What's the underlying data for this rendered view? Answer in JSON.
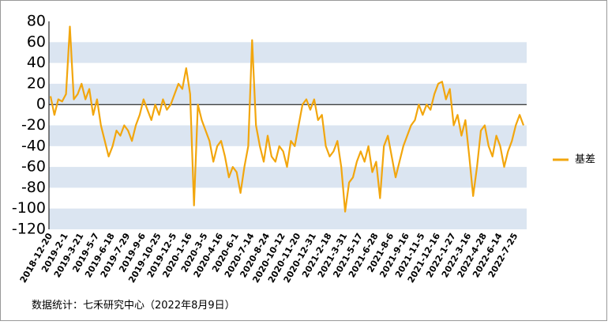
{
  "chart_data": {
    "type": "line",
    "categories": [
      "2018-12-20",
      null,
      null,
      null,
      "2019-2-1",
      null,
      null,
      null,
      "2019-3-21",
      null,
      null,
      null,
      "2019-5-7",
      null,
      null,
      null,
      "2019-6-18",
      null,
      null,
      null,
      "2019-7-29",
      null,
      null,
      null,
      "2019-9-6",
      null,
      null,
      null,
      "2019-10-25",
      null,
      null,
      null,
      "2019-12-5",
      null,
      null,
      null,
      "2020-1-16",
      null,
      null,
      null,
      "2020-3-5",
      null,
      null,
      null,
      "2020-4-16",
      null,
      null,
      null,
      "2020-6-1",
      null,
      null,
      null,
      "2020-7-14",
      null,
      null,
      null,
      "2020-8-24",
      null,
      null,
      null,
      "2020-10-12",
      null,
      null,
      null,
      "2020-11-20",
      null,
      null,
      null,
      "2020-12-31",
      null,
      null,
      null,
      "2021-2-18",
      null,
      null,
      null,
      "2021-3-31",
      null,
      null,
      null,
      "2021-5-17",
      null,
      null,
      null,
      "2021-6-28",
      null,
      null,
      null,
      "2021-8-6",
      null,
      null,
      null,
      "2021-9-16",
      null,
      null,
      null,
      "2021-11-5",
      null,
      null,
      null,
      "2021-12-16",
      null,
      null,
      null,
      "2022-1-27",
      null,
      null,
      null,
      "2022-3-16",
      null,
      null,
      null,
      "2022-4-28",
      null,
      null,
      null,
      "2022-6-14",
      null,
      null,
      null,
      "2022-7-25",
      null,
      null
    ],
    "series": [
      {
        "name": "基差",
        "color": "#f2a60d",
        "values": [
          8,
          -10,
          5,
          3,
          10,
          75,
          5,
          10,
          20,
          5,
          15,
          -10,
          5,
          -20,
          -35,
          -50,
          -40,
          -25,
          -30,
          -20,
          -25,
          -35,
          -20,
          -10,
          5,
          -5,
          -15,
          0,
          -10,
          5,
          -5,
          0,
          10,
          20,
          15,
          35,
          10,
          -97,
          0,
          -15,
          -25,
          -35,
          -55,
          -40,
          -35,
          -50,
          -70,
          -60,
          -65,
          -85,
          -60,
          -40,
          62,
          -20,
          -40,
          -55,
          -30,
          -50,
          -55,
          -40,
          -45,
          -60,
          -35,
          -40,
          -20,
          0,
          5,
          -5,
          5,
          -15,
          -10,
          -40,
          -50,
          -45,
          -35,
          -60,
          -103,
          -75,
          -70,
          -55,
          -45,
          -55,
          -40,
          -65,
          -55,
          -90,
          -40,
          -30,
          -50,
          -70,
          -55,
          -40,
          -30,
          -20,
          -15,
          0,
          -10,
          0,
          -5,
          10,
          20,
          22,
          5,
          15,
          -20,
          -10,
          -30,
          -15,
          -50,
          -88,
          -60,
          -25,
          -20,
          -40,
          -50,
          -30,
          -40,
          -60,
          -45,
          -35,
          -20,
          -10,
          -20
        ]
      }
    ],
    "ylim": [
      -120,
      80
    ],
    "yticks": [
      -120,
      -100,
      -80,
      -60,
      -40,
      -20,
      0,
      20,
      40,
      60,
      80
    ],
    "grid": "bands",
    "legend": "right",
    "source": "数据统计：七禾研究中心（2022年8月9日）"
  }
}
